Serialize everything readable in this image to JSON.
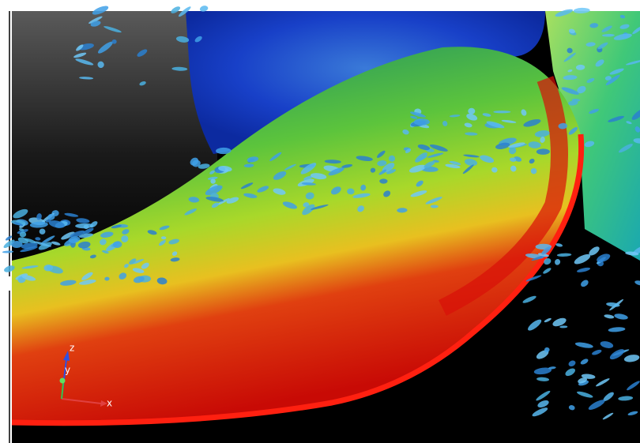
{
  "axes_triad": {
    "z_label": "z",
    "y_label": "y",
    "x_label": "x"
  }
}
